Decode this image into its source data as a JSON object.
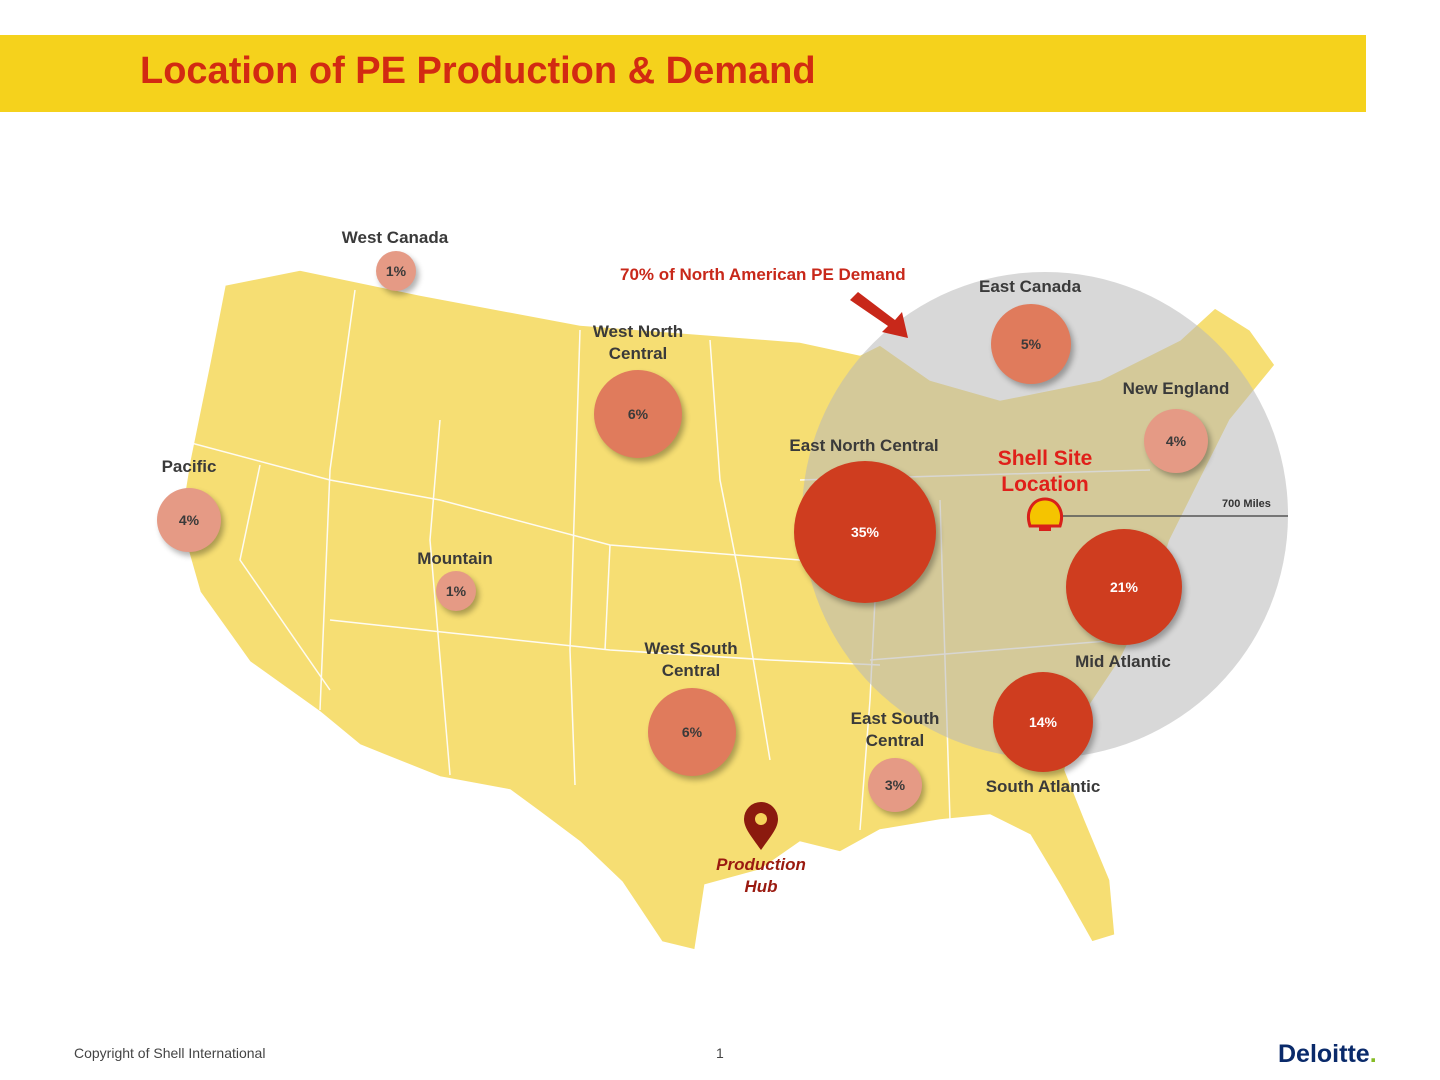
{
  "header": {
    "title": "Location of PE Production & Demand"
  },
  "map": {
    "callout": "70% of North American PE Demand",
    "shell_site_label_line1": "Shell Site",
    "shell_site_label_line2": "Location",
    "radius_label": "700 Miles",
    "production_hub_line1": "Production",
    "production_hub_line2": "Hub",
    "regions": [
      {
        "name": "West Canada",
        "share": "1%"
      },
      {
        "name": "Pacific",
        "share": "4%"
      },
      {
        "name": "Mountain",
        "share": "1%"
      },
      {
        "name_line1": "West North",
        "name_line2": "Central",
        "share": "6%"
      },
      {
        "name_line1": "West South",
        "name_line2": "Central",
        "share": "6%"
      },
      {
        "name": "East North Central",
        "share": "35%"
      },
      {
        "name_line1": "East South",
        "name_line2": "Central",
        "share": "3%"
      },
      {
        "name": "East Canada",
        "share": "5%"
      },
      {
        "name": "New England",
        "share": "4%"
      },
      {
        "name": "Mid Atlantic",
        "share": "21%"
      },
      {
        "name": "South Atlantic",
        "share": "14%"
      }
    ],
    "colors": {
      "land": "#f6de73",
      "radius_circle": "#c8c8c8",
      "bubble_high": "#cf3d1f",
      "bubble_low": "#e59a85",
      "accent": "#d22a12"
    }
  },
  "footer": {
    "copyright": "Copyright  of Shell International",
    "page": "1",
    "logo": "Deloitte",
    "logo_dot": "."
  }
}
